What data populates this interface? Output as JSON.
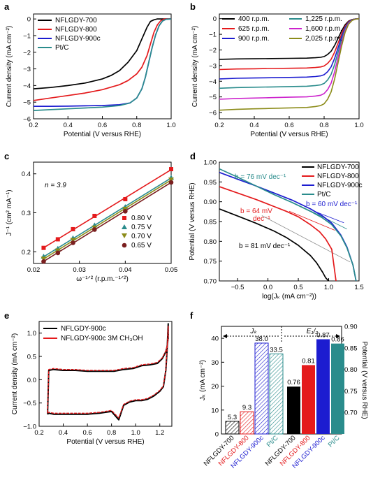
{
  "chart_data": [
    {
      "panel": "a",
      "type": "line",
      "xlabel": "Potential (V versus RHE)",
      "ylabel": "Current density (mA cm⁻²)",
      "xlim": [
        0.2,
        1.0
      ],
      "ylim": [
        -6,
        0.3
      ],
      "xticks": [
        0.2,
        0.4,
        0.6,
        0.8,
        1.0
      ],
      "yticks": [
        0,
        -1,
        -2,
        -3,
        -4,
        -5,
        -6
      ],
      "legend": "top-left",
      "series": [
        {
          "name": "NFLGDY-700",
          "color": "#000000",
          "x": [
            0.2,
            0.3,
            0.4,
            0.5,
            0.6,
            0.65,
            0.7,
            0.75,
            0.8,
            0.83,
            0.86,
            0.88,
            0.9,
            0.92,
            0.94,
            1.0
          ],
          "y": [
            -4.2,
            -4.12,
            -4.0,
            -3.85,
            -3.6,
            -3.4,
            -3.1,
            -2.6,
            -1.9,
            -1.2,
            -0.5,
            -0.15,
            -0.05,
            0,
            0,
            0
          ]
        },
        {
          "name": "NFLGDY-800",
          "color": "#e41a1c",
          "x": [
            0.2,
            0.3,
            0.4,
            0.5,
            0.6,
            0.7,
            0.75,
            0.8,
            0.83,
            0.86,
            0.88,
            0.9,
            0.92,
            0.94,
            0.96,
            1.0
          ],
          "y": [
            -4.9,
            -4.75,
            -4.6,
            -4.45,
            -4.25,
            -3.95,
            -3.7,
            -3.3,
            -2.9,
            -2.2,
            -1.5,
            -0.8,
            -0.35,
            -0.1,
            0,
            0
          ]
        },
        {
          "name": "NFLGDY-900c",
          "color": "#1c1cd0",
          "x": [
            0.2,
            0.3,
            0.4,
            0.5,
            0.6,
            0.7,
            0.76,
            0.8,
            0.83,
            0.85,
            0.87,
            0.89,
            0.91,
            0.93,
            0.95,
            0.97,
            1.0
          ],
          "y": [
            -5.25,
            -5.25,
            -5.24,
            -5.22,
            -5.2,
            -5.15,
            -5.05,
            -4.75,
            -4.2,
            -3.5,
            -2.6,
            -1.7,
            -0.95,
            -0.4,
            -0.12,
            -0.02,
            0
          ]
        },
        {
          "name": "Pt/C",
          "color": "#2a8c8c",
          "x": [
            0.2,
            0.3,
            0.4,
            0.5,
            0.6,
            0.7,
            0.76,
            0.8,
            0.83,
            0.85,
            0.87,
            0.89,
            0.91,
            0.93,
            0.95,
            0.97,
            1.0
          ],
          "y": [
            -5.5,
            -5.45,
            -5.4,
            -5.35,
            -5.3,
            -5.2,
            -5.05,
            -4.75,
            -4.2,
            -3.5,
            -2.6,
            -1.7,
            -0.95,
            -0.4,
            -0.12,
            -0.02,
            0
          ]
        }
      ]
    },
    {
      "panel": "b",
      "type": "line",
      "xlabel": "Potential (V versus RHE)",
      "ylabel": "Current density (mA cm⁻²)",
      "xlim": [
        0.2,
        1.0
      ],
      "ylim": [
        -6.4,
        0.3
      ],
      "xticks": [
        0.2,
        0.4,
        0.6,
        0.8,
        1.0
      ],
      "yticks": [
        0,
        -1,
        -2,
        -3,
        -4,
        -5,
        -6
      ],
      "legend": "top-left, two columns",
      "series": [
        {
          "name": "400 r.p.m.",
          "color": "#000000",
          "plateau": -2.6
        },
        {
          "name": "625 r.p.m.",
          "color": "#e41a1c",
          "plateau": -3.25
        },
        {
          "name": "900 r.p.m.",
          "color": "#1c1cd0",
          "plateau": -3.85
        },
        {
          "name": "1,225 r.p.m.",
          "color": "#2a8c8c",
          "plateau": -4.45
        },
        {
          "name": "1,600 r.p.m.",
          "color": "#cc22cc",
          "plateau": -5.15
        },
        {
          "name": "2,025 r.p.m.",
          "color": "#8c8c1a",
          "plateau": -5.85
        }
      ],
      "x": [
        0.2,
        0.3,
        0.4,
        0.5,
        0.6,
        0.7,
        0.75,
        0.78,
        0.8,
        0.82,
        0.84,
        0.86,
        0.88,
        0.9,
        0.92,
        0.94,
        0.96,
        0.98,
        1.0
      ],
      "shape": [
        1.0,
        0.99,
        0.985,
        0.98,
        0.975,
        0.97,
        0.96,
        0.95,
        0.93,
        0.88,
        0.8,
        0.66,
        0.48,
        0.3,
        0.15,
        0.06,
        0.02,
        0.005,
        0
      ]
    },
    {
      "panel": "c",
      "type": "scatter",
      "xlabel": "ω⁻¹ᐟ² (r.p.m.⁻¹ᐟ²)",
      "ylabel": "J⁻¹ (cm² mA⁻¹)",
      "xlim": [
        0.02,
        0.05
      ],
      "ylim": [
        0.17,
        0.43
      ],
      "xticks": [
        0.02,
        0.03,
        0.04,
        0.05
      ],
      "yticks": [
        0.2,
        0.3,
        0.4
      ],
      "annotation": "n = 3.9",
      "legend": "bottom-right",
      "x": [
        0.0222,
        0.0253,
        0.0286,
        0.0333,
        0.04,
        0.05
      ],
      "series": [
        {
          "name": "0.80 V",
          "color": "#e41a1c",
          "marker": "square",
          "y": [
            0.21,
            0.232,
            0.258,
            0.292,
            0.335,
            0.412
          ]
        },
        {
          "name": "0.75 V",
          "color": "#2a8c8c",
          "marker": "triangle-up",
          "y": [
            0.188,
            0.208,
            0.235,
            0.268,
            0.315,
            0.39
          ]
        },
        {
          "name": "0.70 V",
          "color": "#8c8c1a",
          "marker": "triangle-down",
          "y": [
            0.182,
            0.203,
            0.23,
            0.262,
            0.31,
            0.385
          ]
        },
        {
          "name": "0.65 V",
          "color": "#7a1f1f",
          "marker": "circle",
          "y": [
            0.175,
            0.197,
            0.223,
            0.257,
            0.304,
            0.378
          ]
        }
      ]
    },
    {
      "panel": "d",
      "type": "line",
      "xlabel": "log(Jₖ (mA cm⁻²))",
      "ylabel": "Potential (V versus RHE)",
      "xlim": [
        -0.8,
        1.5
      ],
      "ylim": [
        0.7,
        1.0
      ],
      "xticks": [
        -0.5,
        0.0,
        0.5,
        1.0,
        1.5
      ],
      "yticks": [
        0.7,
        0.75,
        0.8,
        0.85,
        0.9,
        0.95,
        1.0
      ],
      "legend": "top-right",
      "series": [
        {
          "name": "NFLGDY-700",
          "color": "#000000",
          "x": [
            -0.8,
            -0.5,
            -0.2,
            0.1,
            0.3,
            0.5,
            0.7,
            0.8,
            0.9,
            0.95,
            1.0
          ],
          "y": [
            0.882,
            0.864,
            0.846,
            0.826,
            0.81,
            0.79,
            0.764,
            0.746,
            0.722,
            0.708,
            0.7
          ]
        },
        {
          "name": "NFLGDY-800",
          "color": "#e41a1c",
          "x": [
            -0.8,
            -0.5,
            -0.2,
            0.1,
            0.3,
            0.5,
            0.7,
            0.85,
            0.95,
            1.05,
            1.12
          ],
          "y": [
            0.938,
            0.922,
            0.906,
            0.888,
            0.876,
            0.862,
            0.842,
            0.824,
            0.806,
            0.78,
            0.7
          ]
        },
        {
          "name": "NFLGDY-900c",
          "color": "#1c1cd0",
          "x": [
            -0.8,
            -0.5,
            -0.2,
            0.1,
            0.4,
            0.7,
            0.9,
            1.05,
            1.2,
            1.3,
            1.4,
            1.45
          ],
          "y": [
            0.974,
            0.957,
            0.94,
            0.922,
            0.904,
            0.882,
            0.864,
            0.846,
            0.816,
            0.786,
            0.74,
            0.7
          ]
        },
        {
          "name": "Pt/C",
          "color": "#2a8c8c",
          "x": [
            -0.8,
            -0.5,
            -0.2,
            0.1,
            0.4,
            0.7,
            0.9,
            1.05,
            1.2,
            1.3,
            1.4,
            1.45
          ],
          "y": [
            0.983,
            0.962,
            0.94,
            0.918,
            0.898,
            0.876,
            0.859,
            0.842,
            0.814,
            0.784,
            0.74,
            0.7
          ]
        }
      ],
      "fits": [
        {
          "x": [
            -0.1,
            1.35
          ],
          "y": [
            0.865,
            0.748
          ],
          "color": "#888888"
        },
        {
          "x": [
            0.35,
            1.1
          ],
          "y": [
            0.876,
            0.828
          ],
          "color": "#e41a1c"
        },
        {
          "x": [
            0.75,
            1.25
          ],
          "y": [
            0.877,
            0.847
          ],
          "color": "#1c1cd0"
        },
        {
          "x": [
            0.7,
            1.3
          ],
          "y": [
            0.877,
            0.831
          ],
          "color": "#2a8c8c"
        }
      ],
      "annotations": [
        {
          "text": "b = 76 mV dec⁻¹",
          "color": "#2a8c8c"
        },
        {
          "text": "b = 60 mV dec⁻¹",
          "color": "#1c1cd0"
        },
        {
          "text": "b = 64 mV",
          "text2": "dec⁻¹",
          "color": "#e41a1c"
        },
        {
          "text": "b = 81 mV dec⁻¹",
          "color": "#000000"
        }
      ]
    },
    {
      "panel": "e",
      "type": "line",
      "xlabel": "Potential (V versus RHE)",
      "ylabel": "Current density (mA cm⁻²)",
      "xlim": [
        0.2,
        1.3
      ],
      "ylim": [
        -1.0,
        1.25
      ],
      "xticks": [
        0.2,
        0.4,
        0.6,
        0.8,
        1.0,
        1.2
      ],
      "yticks": [
        -1.0,
        -0.5,
        0.0,
        0.5,
        1.0
      ],
      "legend": "top-left",
      "series": [
        {
          "name": "NFLGDY-900c",
          "color": "#000000",
          "x": [
            0.27,
            0.28,
            0.32,
            0.4,
            0.5,
            0.6,
            0.7,
            0.8,
            0.86,
            0.9,
            0.95,
            1.0,
            1.05,
            1.1,
            1.15,
            1.2,
            1.23,
            1.25,
            1.26,
            1.27,
            1.27,
            1.26,
            1.25,
            1.22,
            1.18,
            1.12,
            1.05,
            0.98,
            0.9,
            0.86,
            0.82,
            0.76,
            0.7,
            0.6,
            0.5,
            0.4,
            0.32,
            0.28,
            0.27
          ],
          "y": [
            -0.74,
            -0.72,
            -0.74,
            -0.74,
            -0.74,
            -0.74,
            -0.72,
            -0.68,
            -0.86,
            -0.55,
            -0.48,
            -0.45,
            -0.45,
            -0.42,
            -0.35,
            -0.25,
            -0.15,
            0.2,
            0.6,
            1.2,
            0.9,
            0.7,
            0.6,
            0.45,
            0.35,
            0.32,
            0.3,
            0.24,
            0.22,
            0.2,
            0.18,
            0.18,
            0.18,
            0.18,
            0.2,
            0.2,
            0.22,
            0.2,
            -0.74
          ]
        },
        {
          "name": "NFLGDY-900c 3M CH₃OH",
          "color": "#e41a1c",
          "x": [
            0.27,
            0.28,
            0.32,
            0.4,
            0.5,
            0.6,
            0.7,
            0.8,
            0.86,
            0.9,
            0.95,
            1.0,
            1.05,
            1.1,
            1.15,
            1.2,
            1.23,
            1.25,
            1.26,
            1.27,
            1.27,
            1.26,
            1.25,
            1.22,
            1.18,
            1.12,
            1.05,
            0.98,
            0.9,
            0.86,
            0.82,
            0.76,
            0.7,
            0.6,
            0.5,
            0.4,
            0.32,
            0.28,
            0.27
          ],
          "y": [
            -0.72,
            -0.7,
            -0.72,
            -0.72,
            -0.72,
            -0.72,
            -0.7,
            -0.66,
            -0.82,
            -0.53,
            -0.46,
            -0.43,
            -0.43,
            -0.4,
            -0.33,
            -0.23,
            -0.13,
            0.22,
            0.62,
            1.15,
            0.88,
            0.72,
            0.62,
            0.47,
            0.37,
            0.34,
            0.32,
            0.26,
            0.24,
            0.22,
            0.2,
            0.2,
            0.2,
            0.2,
            0.22,
            0.22,
            0.24,
            0.22,
            -0.72
          ]
        }
      ]
    },
    {
      "panel": "f",
      "type": "bar",
      "ylabel": "Jₖ (mA cm⁻²)",
      "ylabel_right": "Potential (V versus RHE)",
      "ylim": [
        0,
        45
      ],
      "yticks": [
        0,
        10,
        20,
        30,
        40
      ],
      "ylim_right": [
        0.65,
        0.9
      ],
      "yticks_right": [
        0.7,
        0.75,
        0.8,
        0.85,
        0.9
      ],
      "group_labels": [
        "Jₖ",
        "E₁/₂"
      ],
      "categories": [
        "NFLGDY-700",
        "NFLGDY-800",
        "NFLGDY-900c",
        "Pt/C"
      ],
      "category_colors": [
        "#000000",
        "#e41a1c",
        "#1c1cd0",
        "#2a8c8c"
      ],
      "jk_values": [
        5.3,
        9.3,
        38.0,
        33.5
      ],
      "jk_labels": [
        "5.3",
        "9.3",
        "38.0",
        "33.5"
      ],
      "e_values": [
        0.76,
        0.81,
        0.87,
        0.86
      ],
      "e_labels": [
        "0.76",
        "0.81",
        "0.87",
        "0.86"
      ]
    }
  ],
  "panel_letters": [
    "a",
    "b",
    "c",
    "d",
    "e",
    "f"
  ]
}
